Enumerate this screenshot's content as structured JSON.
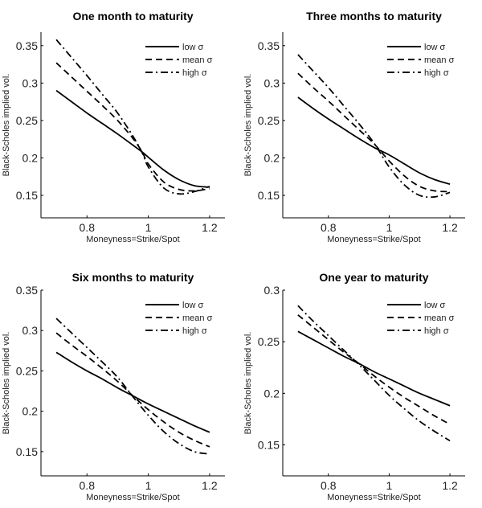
{
  "chart_data": [
    {
      "type": "line",
      "title": "One month to maturity",
      "xlabel": "Moneyness=Strike/Spot",
      "ylabel": "Black-Scholes implied vol.",
      "xlim": [
        0.65,
        1.25
      ],
      "ylim": [
        0.12,
        0.368
      ],
      "xticks": [
        0.8,
        1,
        1.2
      ],
      "xtick_labels": [
        "0.8",
        "1",
        "1.2"
      ],
      "yticks": [
        0.15,
        0.2,
        0.25,
        0.3,
        0.35
      ],
      "ytick_labels": [
        "0.15",
        "0.2",
        "0.25",
        "0.3",
        "0.35"
      ],
      "grid": false,
      "legend_position": "top-right",
      "x": [
        0.7,
        0.75,
        0.8,
        0.85,
        0.9,
        0.95,
        0.98,
        1.0,
        1.05,
        1.1,
        1.15,
        1.2
      ],
      "series": [
        {
          "name": "low σ",
          "style": "solid",
          "values": [
            0.29,
            0.275,
            0.26,
            0.246,
            0.232,
            0.217,
            0.208,
            0.201,
            0.184,
            0.171,
            0.163,
            0.161
          ]
        },
        {
          "name": "mean σ",
          "style": "dashed",
          "values": [
            0.327,
            0.308,
            0.289,
            0.27,
            0.25,
            0.226,
            0.208,
            0.192,
            0.168,
            0.158,
            0.156,
            0.159
          ]
        },
        {
          "name": "high σ",
          "style": "dashdot",
          "values": [
            0.358,
            0.334,
            0.31,
            0.285,
            0.26,
            0.229,
            0.207,
            0.188,
            0.16,
            0.152,
            0.155,
            0.162
          ]
        }
      ]
    },
    {
      "type": "line",
      "title": "Three months to maturity",
      "xlabel": "Moneyness=Strike/Spot",
      "ylabel": "Black-Scholes implied vol.",
      "xlim": [
        0.65,
        1.25
      ],
      "ylim": [
        0.12,
        0.368
      ],
      "xticks": [
        0.8,
        1,
        1.2
      ],
      "xtick_labels": [
        "0.8",
        "1",
        "1.2"
      ],
      "yticks": [
        0.15,
        0.2,
        0.25,
        0.3,
        0.35
      ],
      "ytick_labels": [
        "0.15",
        "0.2",
        "0.25",
        "0.3",
        "0.35"
      ],
      "grid": false,
      "legend_position": "top-right",
      "x": [
        0.7,
        0.75,
        0.8,
        0.85,
        0.9,
        0.95,
        1.0,
        1.05,
        1.1,
        1.15,
        1.2
      ],
      "series": [
        {
          "name": "low σ",
          "style": "solid",
          "values": [
            0.281,
            0.266,
            0.252,
            0.239,
            0.226,
            0.214,
            0.204,
            0.192,
            0.18,
            0.171,
            0.165
          ]
        },
        {
          "name": "mean σ",
          "style": "dashed",
          "values": [
            0.313,
            0.294,
            0.276,
            0.257,
            0.238,
            0.219,
            0.196,
            0.176,
            0.162,
            0.156,
            0.155
          ]
        },
        {
          "name": "high σ",
          "style": "dashdot",
          "values": [
            0.338,
            0.316,
            0.294,
            0.27,
            0.246,
            0.22,
            0.188,
            0.164,
            0.15,
            0.148,
            0.154
          ]
        }
      ]
    },
    {
      "type": "line",
      "title": "Six months to maturity",
      "xlabel": "Moneyness=Strike/Spot",
      "ylabel": "Black-Scholes implied vol.",
      "xlim": [
        0.65,
        1.25
      ],
      "ylim": [
        0.12,
        0.35
      ],
      "xticks": [
        0.8,
        1,
        1.2
      ],
      "xtick_labels": [
        "0.8",
        "1",
        "1.2"
      ],
      "yticks": [
        0.15,
        0.2,
        0.25,
        0.3,
        0.35
      ],
      "ytick_labels": [
        "0.15",
        "0.2",
        "0.25",
        "0.3",
        "0.35"
      ],
      "grid": false,
      "legend_position": "top-right",
      "x": [
        0.7,
        0.75,
        0.8,
        0.85,
        0.9,
        0.95,
        1.0,
        1.05,
        1.1,
        1.15,
        1.2
      ],
      "series": [
        {
          "name": "low σ",
          "style": "solid",
          "values": [
            0.273,
            0.261,
            0.25,
            0.24,
            0.229,
            0.219,
            0.209,
            0.2,
            0.191,
            0.182,
            0.174
          ]
        },
        {
          "name": "mean σ",
          "style": "dashed",
          "values": [
            0.297,
            0.282,
            0.268,
            0.253,
            0.237,
            0.219,
            0.202,
            0.187,
            0.174,
            0.164,
            0.156
          ]
        },
        {
          "name": "high σ",
          "style": "dashdot",
          "values": [
            0.315,
            0.297,
            0.279,
            0.261,
            0.242,
            0.218,
            0.195,
            0.175,
            0.16,
            0.15,
            0.147
          ]
        }
      ]
    },
    {
      "type": "line",
      "title": "One year to maturity",
      "xlabel": "Moneyness=Strike/Spot",
      "ylabel": "Black-Scholes implied vol.",
      "xlim": [
        0.65,
        1.25
      ],
      "ylim": [
        0.12,
        0.3
      ],
      "xticks": [
        0.8,
        1,
        1.2
      ],
      "xtick_labels": [
        "0.8",
        "1",
        "1.2"
      ],
      "yticks": [
        0.15,
        0.2,
        0.25,
        0.3
      ],
      "ytick_labels": [
        "0.15",
        "0.2",
        "0.25",
        "0.3"
      ],
      "grid": false,
      "legend_position": "top-right",
      "x": [
        0.7,
        0.75,
        0.8,
        0.85,
        0.9,
        0.95,
        1.0,
        1.05,
        1.1,
        1.15,
        1.2
      ],
      "series": [
        {
          "name": "low σ",
          "style": "solid",
          "values": [
            0.26,
            0.252,
            0.244,
            0.236,
            0.229,
            0.221,
            0.214,
            0.207,
            0.2,
            0.194,
            0.188
          ]
        },
        {
          "name": "mean σ",
          "style": "dashed",
          "values": [
            0.276,
            0.264,
            0.252,
            0.24,
            0.229,
            0.217,
            0.206,
            0.196,
            0.187,
            0.178,
            0.17
          ]
        },
        {
          "name": "high σ",
          "style": "dashdot",
          "values": [
            0.285,
            0.27,
            0.256,
            0.242,
            0.228,
            0.213,
            0.198,
            0.185,
            0.173,
            0.163,
            0.154
          ]
        }
      ]
    }
  ]
}
